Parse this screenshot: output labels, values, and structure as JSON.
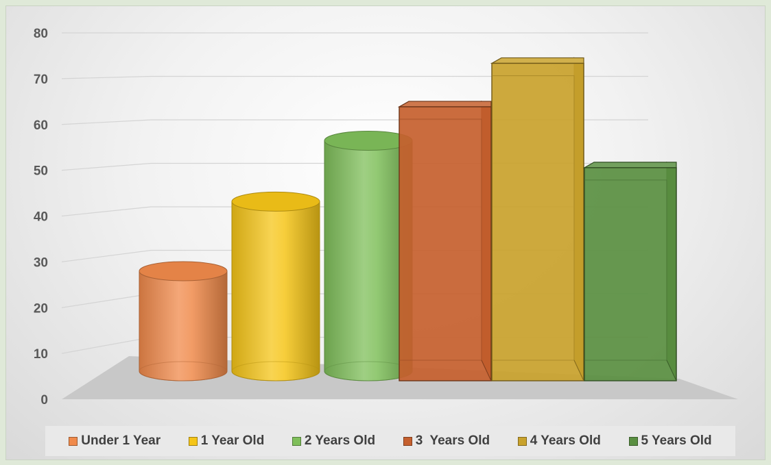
{
  "chart_data": {
    "type": "bar",
    "style": "3d-clustered-column",
    "categories": [
      "Under 1 Year",
      "1 Year Old",
      "2 Years Old",
      "3  Years Old",
      "4 Years Old",
      "5 Years Old"
    ],
    "values": [
      23,
      39,
      53,
      63,
      73,
      49
    ],
    "shapes": [
      "cylinder",
      "cylinder",
      "cylinder",
      "box",
      "box",
      "box"
    ],
    "colors": [
      "#f08a4b",
      "#f5c518",
      "#7fbf5a",
      "#c5602e",
      "#c9a22c",
      "#5a8f41"
    ],
    "yticks": [
      0,
      10,
      20,
      30,
      40,
      50,
      60,
      70,
      80
    ],
    "ylim": [
      0,
      80
    ],
    "grid": true,
    "legend_position": "bottom"
  }
}
